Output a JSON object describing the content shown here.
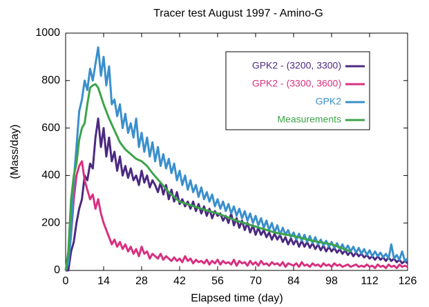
{
  "chart_data": {
    "type": "line",
    "title": "Tracer test August 1997 - Amino-G",
    "xlabel": "Elapsed time (day)",
    "ylabel": "(Mass/day)",
    "xlim": [
      0,
      126
    ],
    "xticks": [
      0,
      14,
      28,
      42,
      56,
      70,
      84,
      98,
      112,
      126
    ],
    "ylim": [
      0,
      1000
    ],
    "yticks": [
      0,
      200,
      400,
      600,
      800,
      1000
    ],
    "legend": "upper right",
    "x": [
      0,
      1,
      2,
      3,
      4,
      5,
      6,
      7,
      8,
      9,
      10,
      11,
      12,
      13,
      14,
      15,
      16,
      17,
      18,
      19,
      20,
      21,
      22,
      23,
      24,
      25,
      26,
      27,
      28,
      29,
      30,
      31,
      32,
      33,
      34,
      35,
      36,
      37,
      38,
      39,
      40,
      41,
      42,
      43,
      44,
      45,
      46,
      47,
      48,
      49,
      50,
      51,
      52,
      53,
      54,
      55,
      56,
      57,
      58,
      59,
      60,
      61,
      62,
      63,
      64,
      65,
      66,
      67,
      68,
      69,
      70,
      71,
      72,
      73,
      74,
      75,
      76,
      77,
      78,
      79,
      80,
      81,
      82,
      83,
      84,
      85,
      86,
      87,
      88,
      89,
      90,
      91,
      92,
      93,
      94,
      95,
      96,
      97,
      98,
      99,
      100,
      101,
      102,
      103,
      104,
      105,
      106,
      107,
      108,
      109,
      110,
      111,
      112,
      113,
      114,
      115,
      116,
      117,
      118,
      119,
      120,
      121,
      122,
      123,
      124,
      125,
      126
    ],
    "series": [
      {
        "name": "GPK2 - (3200, 3300)",
        "color": "#4b2a80",
        "values": [
          0,
          0,
          80,
          120,
          200,
          260,
          300,
          400,
          380,
          450,
          430,
          560,
          640,
          520,
          600,
          480,
          560,
          460,
          500,
          420,
          480,
          400,
          440,
          390,
          430,
          380,
          400,
          360,
          420,
          370,
          400,
          350,
          380,
          360,
          330,
          370,
          320,
          360,
          300,
          340,
          290,
          330,
          280,
          300,
          270,
          290,
          260,
          290,
          250,
          280,
          240,
          270,
          230,
          260,
          220,
          250,
          230,
          240,
          210,
          230,
          200,
          240,
          190,
          220,
          180,
          210,
          170,
          200,
          160,
          190,
          150,
          180,
          150,
          170,
          140,
          160,
          130,
          155,
          130,
          150,
          120,
          140,
          110,
          135,
          110,
          130,
          100,
          125,
          100,
          120,
          95,
          115,
          90,
          110,
          85,
          105,
          80,
          100,
          80,
          95,
          75,
          90,
          70,
          85,
          65,
          80,
          60,
          75,
          60,
          70,
          55,
          65,
          50,
          60,
          45,
          60,
          45,
          55,
          40,
          55,
          40,
          50,
          35,
          45,
          30,
          40,
          30
        ]
      },
      {
        "name": "GPK2 - (3300, 3600)",
        "color": "#d8307f",
        "values": [
          0,
          40,
          150,
          300,
          400,
          440,
          460,
          380,
          340,
          300,
          320,
          260,
          300,
          240,
          200,
          170,
          140,
          110,
          130,
          100,
          120,
          90,
          110,
          80,
          100,
          70,
          90,
          60,
          100,
          70,
          80,
          50,
          70,
          60,
          50,
          70,
          45,
          60,
          50,
          40,
          55,
          40,
          50,
          35,
          60,
          40,
          50,
          30,
          45,
          35,
          40,
          30,
          45,
          25,
          40,
          30,
          45,
          25,
          40,
          30,
          35,
          25,
          45,
          20,
          40,
          30,
          35,
          20,
          40,
          25,
          35,
          20,
          40,
          25,
          30,
          20,
          35,
          25,
          30,
          20,
          35,
          15,
          30,
          25,
          20,
          30,
          15,
          35,
          20,
          25,
          15,
          30,
          20,
          25,
          15,
          30,
          20,
          25,
          15,
          30,
          20,
          25,
          15,
          20,
          25,
          15,
          20,
          25,
          15,
          20,
          15,
          25,
          15,
          20,
          10,
          25,
          15,
          20,
          10,
          25,
          15,
          20,
          10,
          25,
          15,
          20,
          15
        ]
      },
      {
        "name": "GPK2",
        "color": "#3a8fcc",
        "values": [
          0,
          30,
          150,
          380,
          520,
          670,
          720,
          800,
          760,
          850,
          800,
          870,
          940,
          820,
          900,
          780,
          860,
          700,
          720,
          650,
          700,
          600,
          660,
          580,
          620,
          560,
          640,
          520,
          580,
          500,
          560,
          480,
          540,
          460,
          520,
          440,
          490,
          430,
          470,
          410,
          450,
          380,
          420,
          360,
          400,
          340,
          380,
          330,
          360,
          310,
          350,
          300,
          330,
          290,
          320,
          270,
          300,
          260,
          290,
          250,
          280,
          240,
          270,
          230,
          260,
          220,
          250,
          210,
          240,
          200,
          230,
          190,
          220,
          180,
          210,
          170,
          200,
          160,
          190,
          150,
          180,
          150,
          170,
          140,
          160,
          130,
          155,
          125,
          150,
          120,
          145,
          115,
          140,
          110,
          130,
          105,
          125,
          100,
          120,
          95,
          115,
          90,
          110,
          85,
          105,
          80,
          100,
          75,
          95,
          70,
          90,
          65,
          85,
          60,
          80,
          60,
          75,
          55,
          70,
          50,
          110,
          50,
          65,
          45,
          80,
          40,
          50
        ]
      },
      {
        "name": "Measurements",
        "color": "#3ca34a",
        "x": [
          0,
          1,
          2,
          3,
          4,
          5,
          6,
          7,
          8,
          9,
          10,
          11,
          12,
          14,
          16,
          18,
          20,
          22,
          24,
          26,
          28,
          30,
          32,
          35,
          38,
          42,
          46,
          50,
          56,
          63,
          70,
          77,
          84,
          91,
          98,
          105
        ],
        "values": [
          0,
          80,
          300,
          400,
          450,
          550,
          600,
          620,
          700,
          770,
          780,
          785,
          770,
          700,
          640,
          590,
          540,
          510,
          490,
          470,
          460,
          440,
          410,
          370,
          330,
          290,
          275,
          260,
          240,
          210,
          185,
          160,
          145,
          125,
          110,
          80
        ]
      }
    ]
  }
}
